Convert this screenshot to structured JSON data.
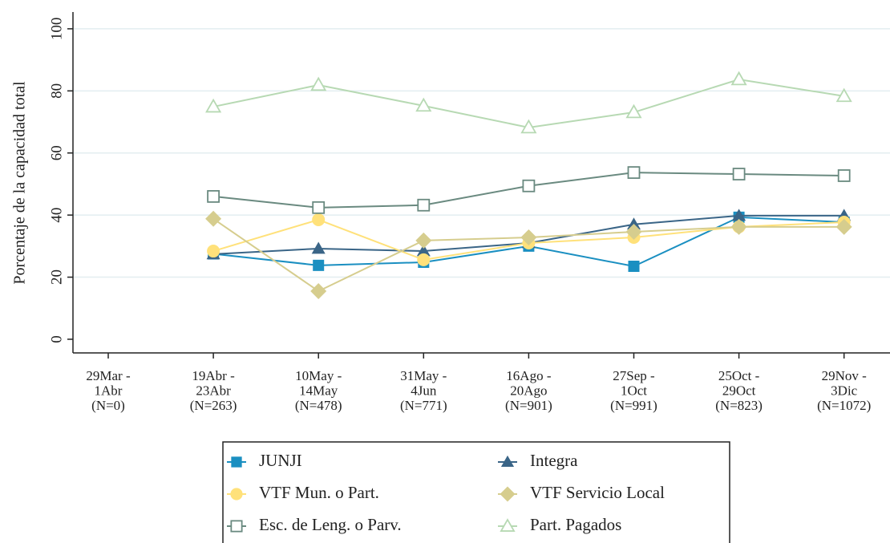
{
  "chart_data": {
    "type": "line",
    "y_label": "Porcentaje de la capacidad total",
    "categories": [
      [
        "29Mar -",
        "1Abr",
        "(N=0)"
      ],
      [
        "19Abr -",
        "23Abr",
        "(N=263)"
      ],
      [
        "10May -",
        "14May",
        "(N=478)"
      ],
      [
        "31May -",
        "4Jun",
        "(N=771)"
      ],
      [
        "16Ago -",
        "20Ago",
        "(N=901)"
      ],
      [
        "27Sep -",
        "1Oct",
        "(N=991)"
      ],
      [
        "25Oct -",
        "29Oct",
        "(N=823)"
      ],
      [
        "29Nov -",
        "3Dic",
        "(N=1072)"
      ]
    ],
    "ylim": [
      -4.4,
      105.4
    ],
    "yticks": [
      0,
      20,
      40,
      60,
      80,
      100
    ],
    "grid": true,
    "series": [
      {
        "name": "JUNJI",
        "color": "#1a8fc1",
        "marker": "square",
        "values": [
          null,
          27.5,
          23.8,
          24.8,
          30,
          23.5,
          39.3,
          37.7
        ]
      },
      {
        "name": "Integra",
        "color": "#3a6587",
        "marker": "triangle",
        "values": [
          null,
          27.4,
          29.2,
          28.4,
          31,
          37,
          39.8,
          39.8
        ]
      },
      {
        "name": "VTF Mun. o Part.",
        "color": "#ffe17a",
        "marker": "circle",
        "values": [
          null,
          28.4,
          38.5,
          25.6,
          31,
          32.8,
          36.2,
          37.7
        ]
      },
      {
        "name": "VTF Servicio Local",
        "color": "#d6cd8e",
        "marker": "diamond",
        "values": [
          null,
          38.8,
          15.5,
          31.8,
          32.8,
          34.6,
          36.2,
          36.2
        ]
      },
      {
        "name": "Esc. de Leng. o Parv.",
        "color": "#6a8a80",
        "marker": "square-hollow",
        "values": [
          null,
          46,
          42.4,
          43.2,
          49.4,
          53.7,
          53.2,
          52.7
        ]
      },
      {
        "name": "Part. Pagados",
        "color": "#b7d9b3",
        "marker": "triangle-hollow",
        "values": [
          null,
          74.9,
          81.9,
          75.2,
          68.2,
          73.1,
          83.7,
          78.3
        ]
      }
    ]
  }
}
